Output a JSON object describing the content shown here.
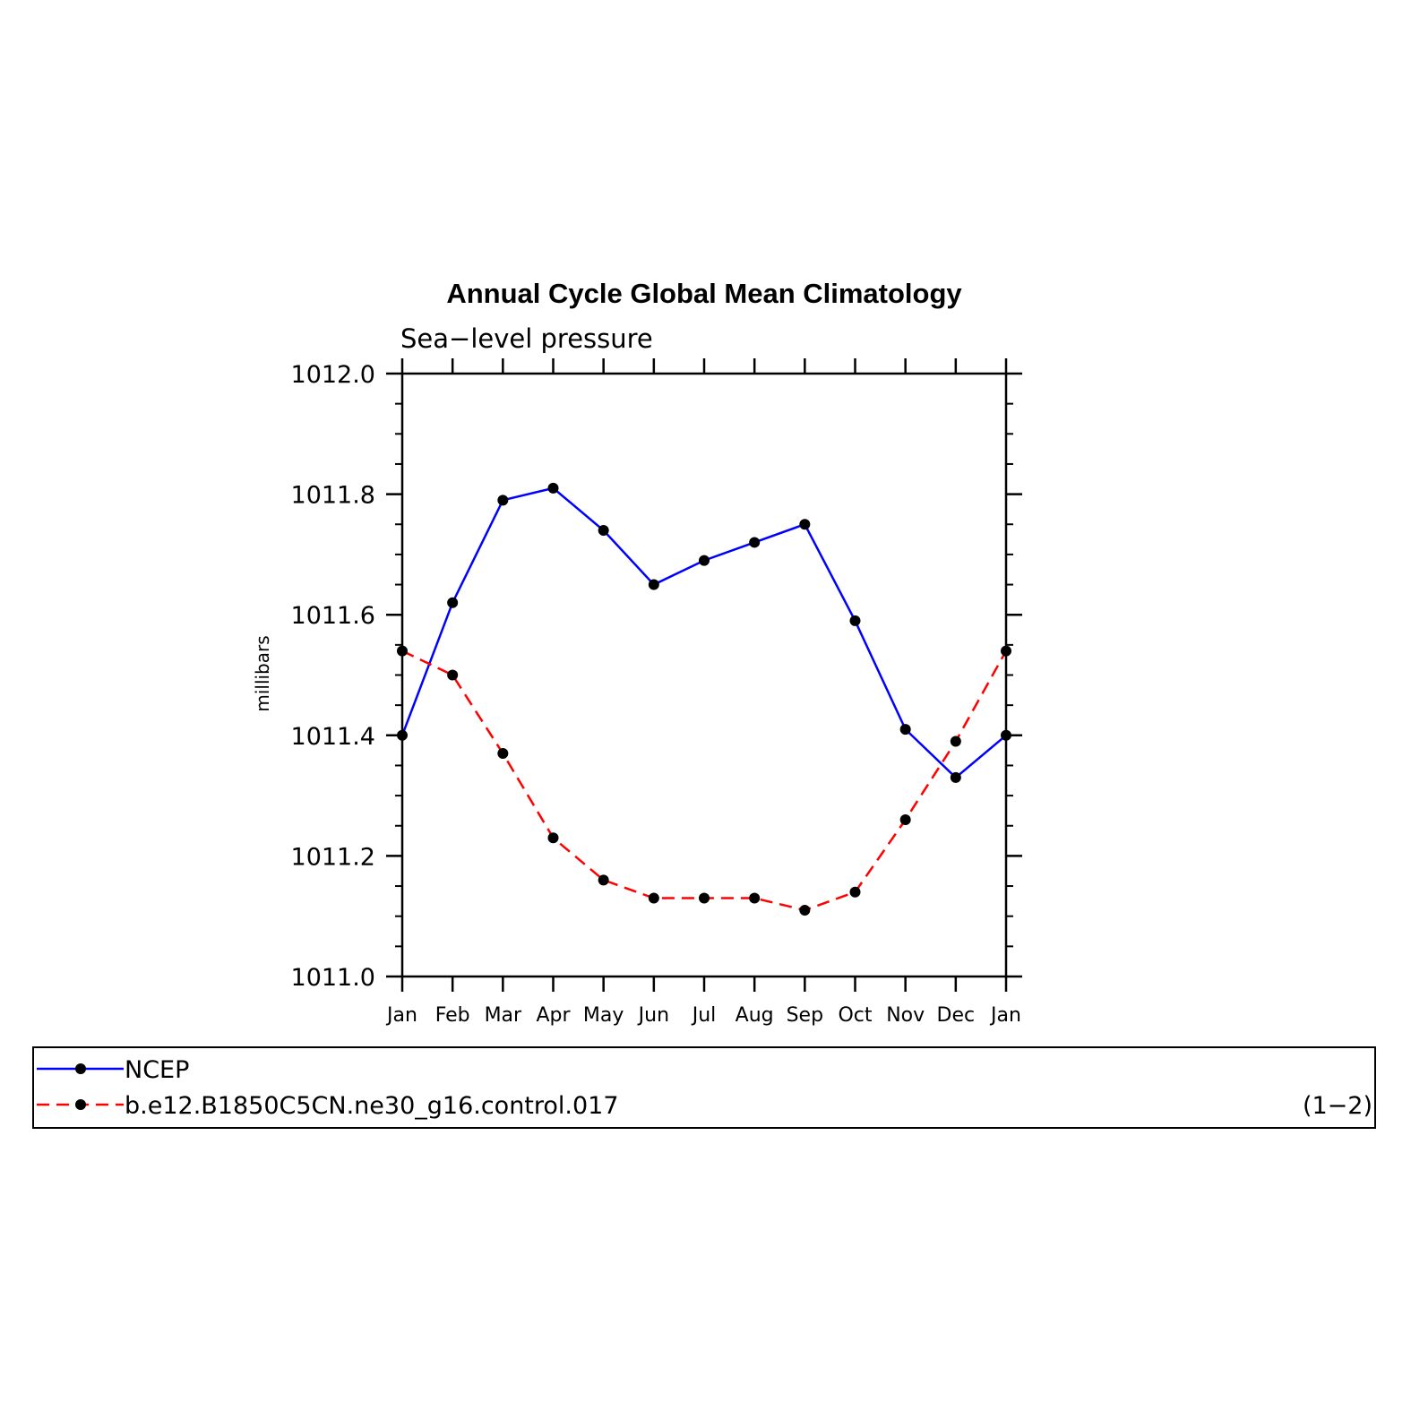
{
  "chart_data": {
    "type": "line",
    "title": "Annual Cycle Global Mean Climatology",
    "subtitle": "Sea−level pressure",
    "ylabel": "millibars",
    "xlabel": "",
    "categories": [
      "Jan",
      "Feb",
      "Mar",
      "Apr",
      "May",
      "Jun",
      "Jul",
      "Aug",
      "Sep",
      "Oct",
      "Nov",
      "Dec",
      "Jan"
    ],
    "ylim": [
      1011.0,
      1012.0
    ],
    "yticks": [
      1011.0,
      1011.2,
      1011.4,
      1011.6,
      1011.8,
      1012.0
    ],
    "ytick_labels": [
      "1011.0",
      "1011.2",
      "1011.4",
      "1011.6",
      "1011.8",
      "1012.0"
    ],
    "grid": false,
    "legend_position": "bottom",
    "series": [
      {
        "name": "NCEP",
        "color": "#0000ff",
        "dash": "solid",
        "marker": "circle",
        "values": [
          1011.4,
          1011.62,
          1011.79,
          1011.81,
          1011.74,
          1011.65,
          1011.69,
          1011.72,
          1011.75,
          1011.59,
          1011.41,
          1011.33,
          1011.4
        ]
      },
      {
        "name": "b.e12.B1850C5CN.ne30_g16.control.017",
        "color": "#ff0000",
        "dash": "dashed",
        "marker": "circle",
        "values": [
          1011.54,
          1011.5,
          1011.37,
          1011.23,
          1011.16,
          1011.13,
          1011.13,
          1011.13,
          1011.11,
          1011.14,
          1011.26,
          1011.39,
          1011.54
        ]
      }
    ],
    "annotation": "(1−2)"
  }
}
